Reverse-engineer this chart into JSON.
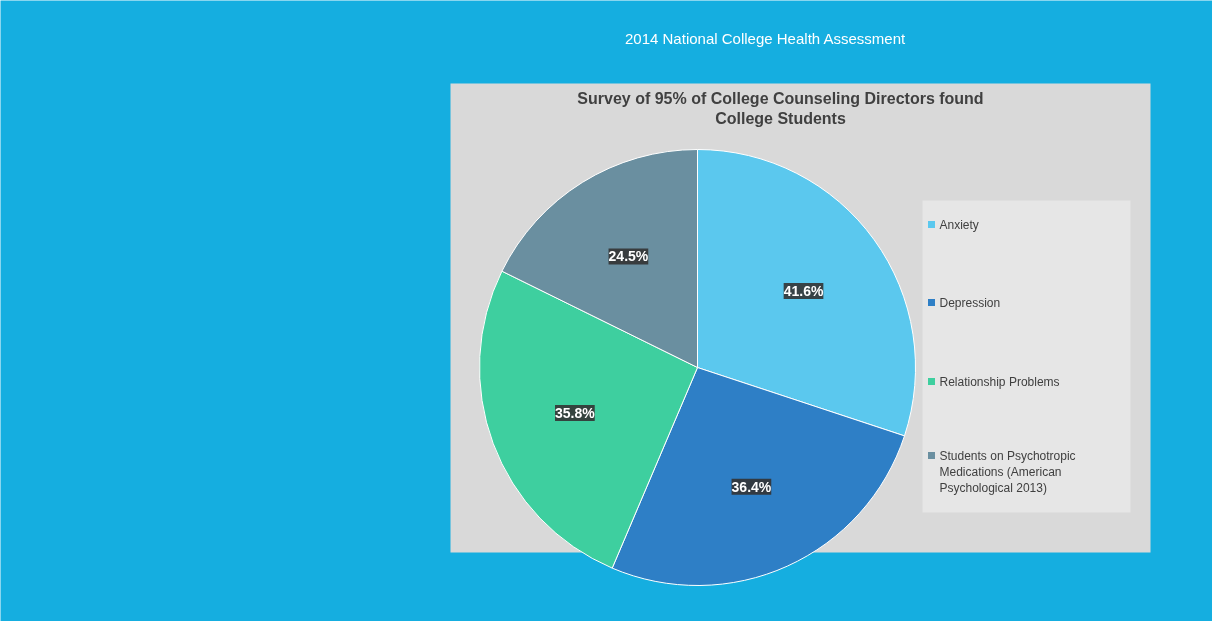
{
  "chart_data": {
    "type": "pie",
    "subtitle": "2014 National College Health Assessment",
    "title": "Survey of 95% of College Counseling Directors found College Students",
    "categories": [
      "Anxiety",
      "Depression",
      "Relationship Problems",
      "Students on Psychotropic Medications (American Psychological 2013)"
    ],
    "values": [
      41.6,
      36.4,
      35.8,
      24.5
    ],
    "value_labels": [
      "41.6%",
      "36.4%",
      "35.8%",
      "24.5%"
    ],
    "colors": [
      "#5bc8ee",
      "#2e7fc6",
      "#3ecf9f",
      "#6a8fa0"
    ],
    "legend": "right"
  }
}
